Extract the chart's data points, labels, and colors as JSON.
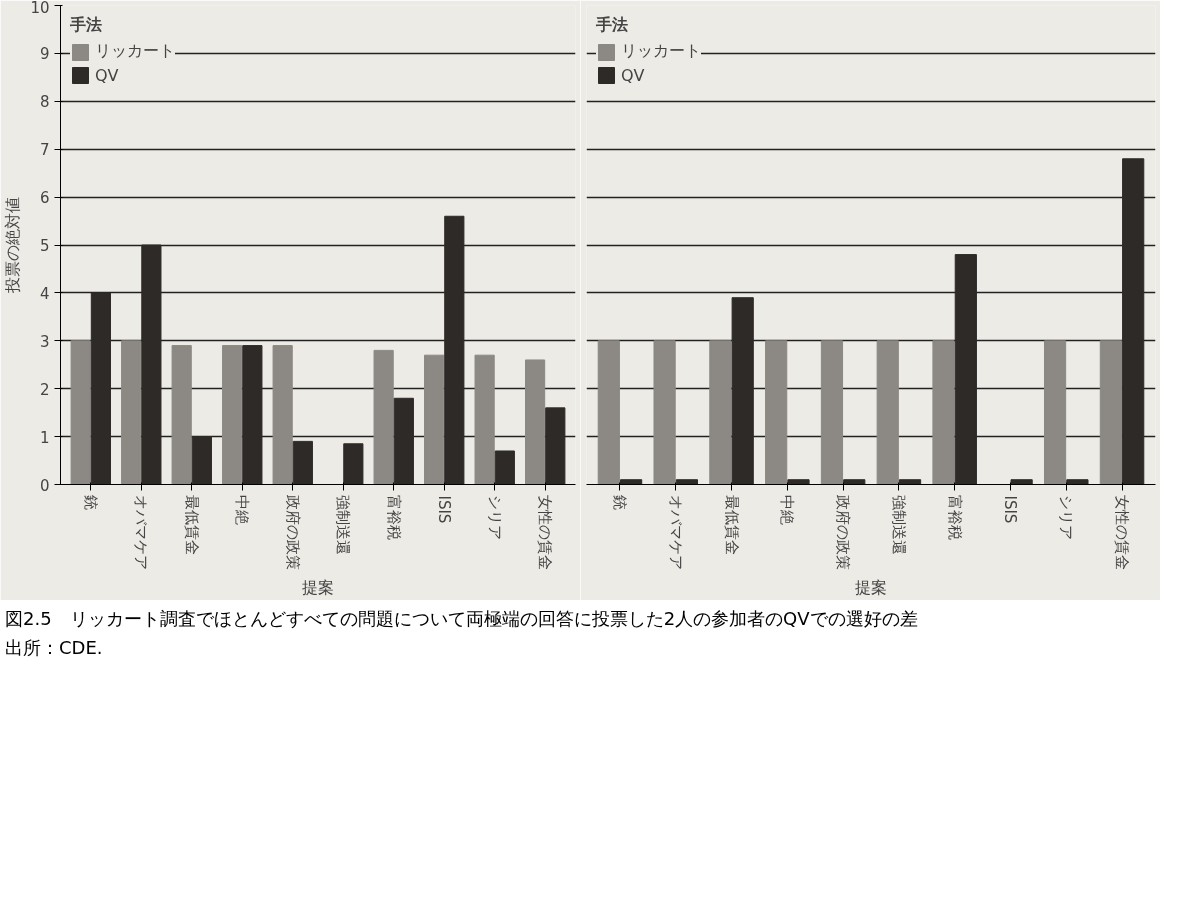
{
  "chart_data": [
    {
      "type": "bar",
      "xlabel": "提案",
      "ylabel": "投票の絶対値",
      "legend_title": "手法",
      "legend": "top left",
      "grid": "y",
      "ylim": [
        0,
        10
      ],
      "yticks": [
        0,
        1,
        2,
        3,
        4,
        5,
        6,
        7,
        8,
        9,
        10
      ],
      "categories": [
        "銃",
        "オバマケア",
        "最低賃金",
        "中絶",
        "政府の政策",
        "強制送還",
        "富裕税",
        "ISIS",
        "シリア",
        "女性の賃金"
      ],
      "series": [
        {
          "name": "リッカート",
          "color": "#8c8984",
          "values": [
            3.0,
            3.0,
            2.9,
            2.9,
            2.9,
            0,
            2.8,
            2.7,
            2.7,
            2.6
          ]
        },
        {
          "name": "QV",
          "color": "#2e2a28",
          "values": [
            4.0,
            5.0,
            1.0,
            2.9,
            0.9,
            0.85,
            1.8,
            5.6,
            0.7,
            1.6
          ]
        }
      ]
    },
    {
      "type": "bar",
      "xlabel": "提案",
      "legend_title": "手法",
      "legend": "top left",
      "grid": "y",
      "ylim": [
        0,
        10
      ],
      "yticks": [
        0,
        1,
        2,
        3,
        4,
        5,
        6,
        7,
        8,
        9,
        10
      ],
      "tick_labels": "x",
      "categories": [
        "銃",
        "オバマケア",
        "最低賃金",
        "中絶",
        "政府の政策",
        "強制送還",
        "富裕税",
        "ISIS",
        "シリア",
        "女性の賃金"
      ],
      "series": [
        {
          "name": "リッカート",
          "color": "#8c8984",
          "values": [
            3.0,
            3.0,
            3.0,
            3.0,
            3.0,
            3.0,
            3.0,
            0,
            3.0,
            3.0
          ]
        },
        {
          "name": "QV",
          "color": "#2e2a28",
          "values": [
            0.1,
            0.1,
            3.9,
            0.1,
            0.1,
            0.1,
            4.8,
            0.1,
            0.1,
            6.8
          ]
        }
      ],
      "annotations": [
        "図2.5　リッカート調査でほとんどすべての問題について両極端の回答に投票した2人の参加者のQVでの選好の差",
        "出所：CDE."
      ]
    }
  ]
}
